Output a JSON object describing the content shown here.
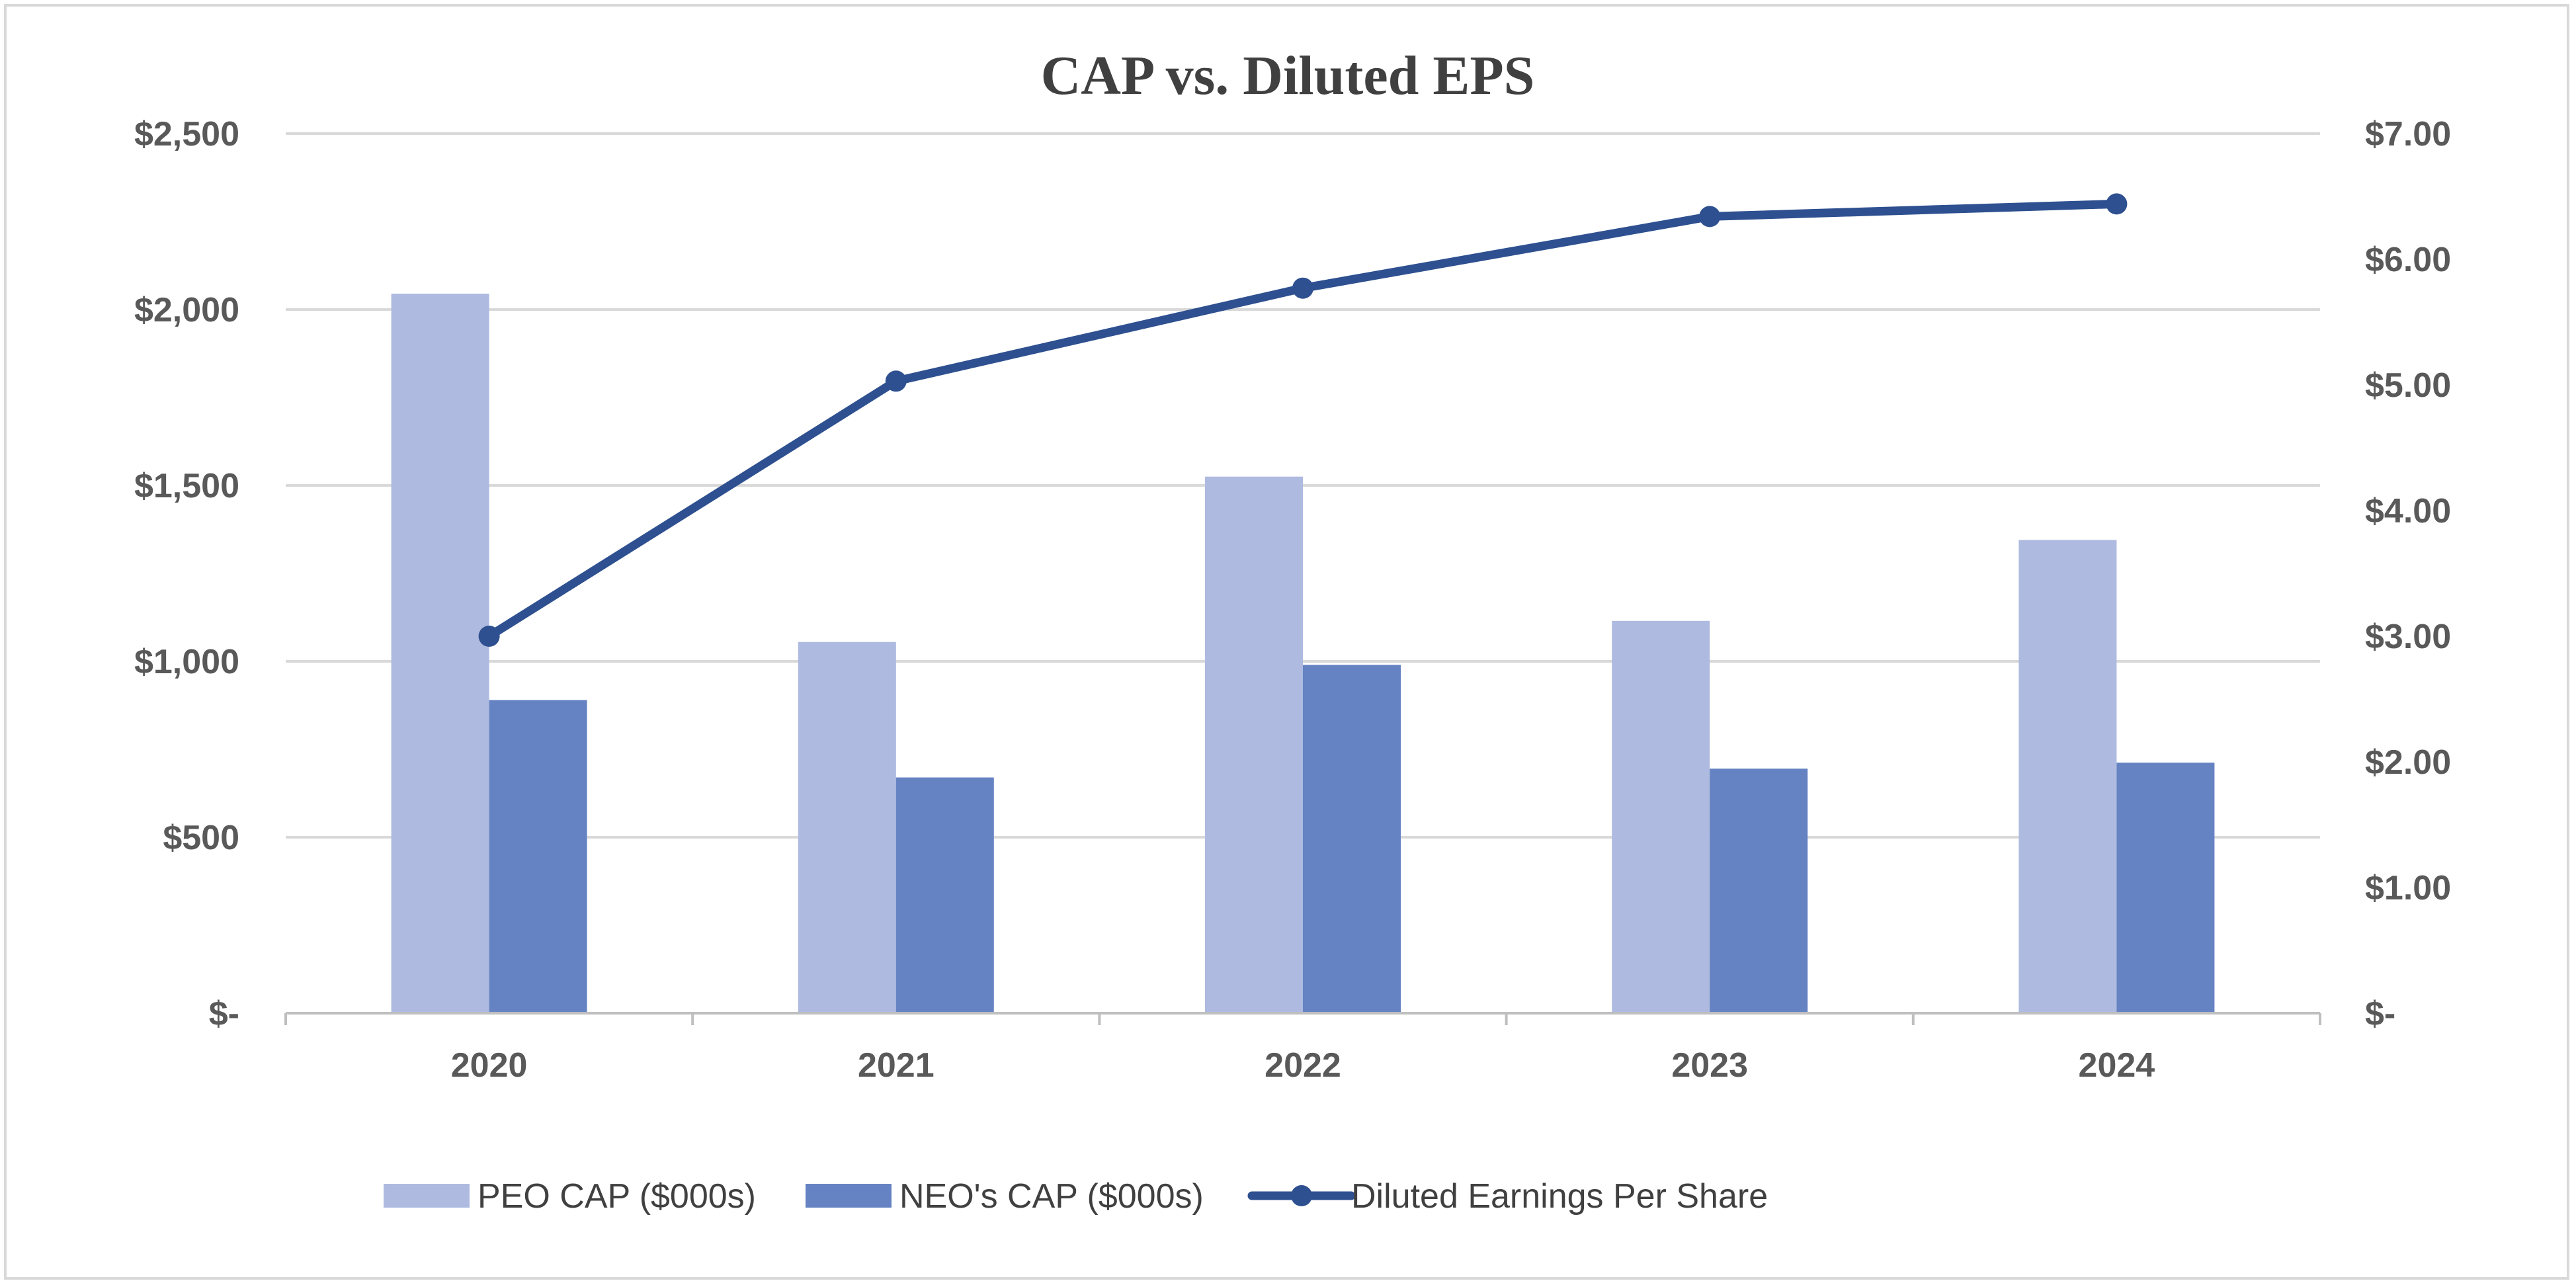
{
  "chart_data": {
    "type": "bar",
    "title": "CAP vs. Diluted EPS",
    "categories": [
      "2020",
      "2021",
      "2022",
      "2023",
      "2024"
    ],
    "series": [
      {
        "name": "PEO CAP ($000s)",
        "type": "bar",
        "axis": "left",
        "color": "#aebadf",
        "values": [
          2045,
          1055,
          1525,
          1115,
          1345
        ]
      },
      {
        "name": "NEO's CAP ($000s)",
        "type": "bar",
        "axis": "left",
        "color": "#6583c3",
        "values": [
          890,
          670,
          990,
          695,
          712
        ]
      },
      {
        "name": "Diluted Earnings Per Share",
        "type": "line",
        "axis": "right",
        "color": "#2e5090",
        "marker": "circle",
        "values": [
          3.0,
          5.03,
          5.77,
          6.34,
          6.44
        ]
      }
    ],
    "y_left": {
      "min": 0,
      "max": 2500,
      "step": 500,
      "tick_labels": [
        "$-",
        "$500",
        "$1,000",
        "$1,500",
        "$2,000",
        "$2,500"
      ]
    },
    "y_right": {
      "min": 0,
      "max": 7,
      "step": 1,
      "tick_labels": [
        "$-",
        "$1.00",
        "$2.00",
        "$3.00",
        "$4.00",
        "$5.00",
        "$6.00",
        "$7.00"
      ]
    },
    "grid": true,
    "legend_position": "bottom"
  },
  "colors": {
    "grid": "#d9d9d9",
    "axis": "#bfbfbf",
    "border": "#d9d9d9"
  }
}
